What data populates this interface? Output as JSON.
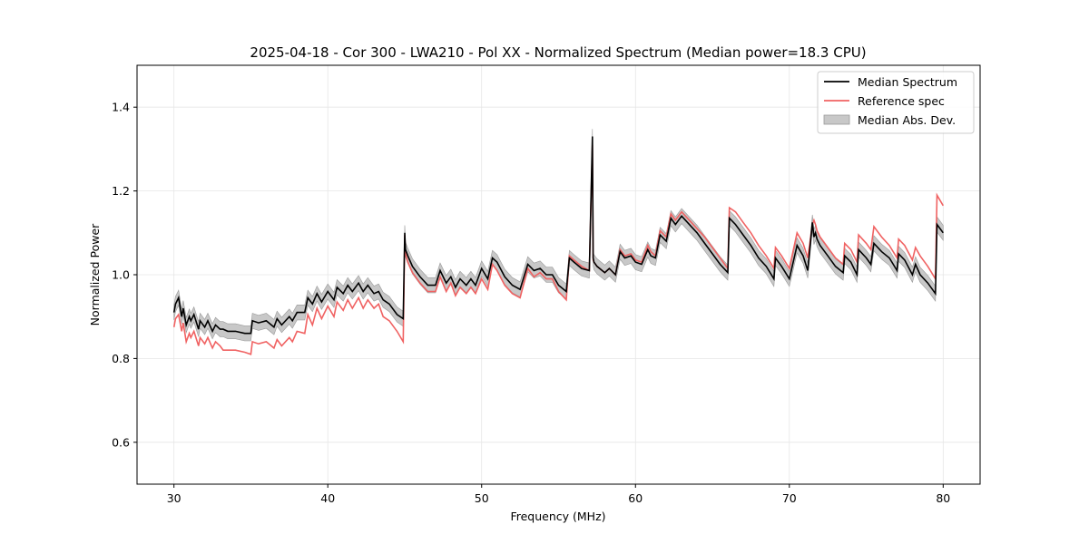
{
  "chart_data": {
    "type": "line",
    "title": "2025-04-18 - Cor 300 - LWA210 - Pol XX - Normalized Spectrum (Median power=18.3 CPU)",
    "xlabel": "Frequency (MHz)",
    "ylabel": "Normalized Power",
    "xlim": [
      27.6,
      82.4
    ],
    "ylim": [
      0.5,
      1.5
    ],
    "xticks": [
      30,
      40,
      50,
      60,
      70,
      80
    ],
    "yticks": [
      0.6,
      0.8,
      1.0,
      1.2,
      1.4
    ],
    "grid": true,
    "legend_position": "top-right",
    "colors": {
      "median": "#000000",
      "reference": "#f06262",
      "mad_band": "#b0b0b0"
    },
    "series": [
      {
        "name": "Median Spectrum",
        "style": "line",
        "x": [
          30.0,
          30.1,
          30.3,
          30.5,
          30.6,
          30.8,
          31.0,
          31.1,
          31.3,
          31.6,
          31.7,
          32.0,
          32.2,
          32.5,
          32.7,
          33.0,
          33.2,
          33.5,
          34.0,
          34.6,
          35.0,
          35.1,
          35.5,
          36.0,
          36.5,
          36.7,
          37.0,
          37.5,
          37.7,
          38.0,
          38.5,
          38.7,
          39.0,
          39.3,
          39.6,
          40.0,
          40.4,
          40.6,
          41.0,
          41.3,
          41.6,
          42.0,
          42.3,
          42.6,
          43.0,
          43.3,
          43.6,
          44.0,
          44.5,
          44.9,
          45.0,
          45.05,
          45.2,
          45.5,
          46.0,
          46.5,
          47.0,
          47.3,
          47.7,
          48.0,
          48.3,
          48.6,
          49.0,
          49.3,
          49.6,
          50.0,
          50.4,
          50.7,
          51.0,
          51.5,
          52.0,
          52.5,
          53.0,
          53.4,
          53.8,
          54.2,
          54.6,
          55.0,
          55.5,
          55.7,
          56.0,
          56.5,
          57.0,
          57.2,
          57.25,
          57.3,
          57.5,
          58.0,
          58.3,
          58.7,
          59.0,
          59.3,
          59.7,
          60.0,
          60.4,
          60.8,
          61.0,
          61.3,
          61.6,
          62.0,
          62.3,
          62.6,
          63.0,
          63.5,
          64.0,
          64.5,
          65.0,
          65.5,
          66.0,
          66.1,
          66.5,
          67.0,
          67.5,
          68.0,
          68.5,
          69.0,
          69.1,
          69.5,
          70.0,
          70.5,
          70.9,
          71.2,
          71.5,
          71.6,
          71.7,
          71.8,
          72.0,
          72.5,
          73.0,
          73.5,
          73.6,
          74.0,
          74.4,
          74.5,
          75.0,
          75.3,
          75.5,
          76.0,
          76.5,
          77.0,
          77.1,
          77.5,
          78.0,
          78.2,
          78.5,
          79.0,
          79.5,
          79.6,
          80.0
        ],
        "y": [
          0.91,
          0.93,
          0.945,
          0.9,
          0.92,
          0.88,
          0.9,
          0.89,
          0.905,
          0.87,
          0.89,
          0.875,
          0.89,
          0.865,
          0.88,
          0.87,
          0.87,
          0.865,
          0.865,
          0.86,
          0.86,
          0.89,
          0.885,
          0.89,
          0.875,
          0.895,
          0.88,
          0.9,
          0.89,
          0.91,
          0.91,
          0.945,
          0.93,
          0.955,
          0.935,
          0.96,
          0.94,
          0.97,
          0.955,
          0.975,
          0.96,
          0.98,
          0.96,
          0.975,
          0.955,
          0.96,
          0.94,
          0.93,
          0.905,
          0.895,
          1.1,
          1.06,
          1.045,
          1.02,
          0.995,
          0.975,
          0.975,
          1.01,
          0.98,
          0.995,
          0.97,
          0.99,
          0.975,
          0.99,
          0.975,
          1.015,
          0.99,
          1.04,
          1.03,
          0.995,
          0.975,
          0.965,
          1.025,
          1.01,
          1.015,
          1.0,
          1.0,
          0.975,
          0.96,
          1.04,
          1.03,
          1.015,
          1.01,
          1.33,
          1.04,
          1.03,
          1.02,
          1.005,
          1.015,
          1.0,
          1.055,
          1.04,
          1.045,
          1.03,
          1.025,
          1.06,
          1.045,
          1.04,
          1.095,
          1.08,
          1.135,
          1.12,
          1.14,
          1.12,
          1.1,
          1.075,
          1.05,
          1.025,
          1.005,
          1.135,
          1.12,
          1.095,
          1.07,
          1.04,
          1.02,
          0.99,
          1.04,
          1.02,
          0.99,
          1.07,
          1.045,
          1.01,
          1.125,
          1.09,
          1.1,
          1.085,
          1.07,
          1.045,
          1.02,
          1.005,
          1.045,
          1.03,
          1.0,
          1.06,
          1.04,
          1.025,
          1.075,
          1.055,
          1.04,
          1.01,
          1.05,
          1.035,
          1.0,
          1.025,
          1.0,
          0.98,
          0.955,
          1.12,
          1.1
        ]
      },
      {
        "name": "Reference spec",
        "style": "line",
        "x": [
          30.0,
          30.1,
          30.3,
          30.5,
          30.6,
          30.8,
          31.0,
          31.1,
          31.3,
          31.6,
          31.7,
          32.0,
          32.2,
          32.5,
          32.7,
          33.0,
          33.2,
          33.5,
          34.0,
          34.6,
          35.0,
          35.1,
          35.5,
          36.0,
          36.5,
          36.7,
          37.0,
          37.5,
          37.7,
          38.0,
          38.5,
          38.7,
          39.0,
          39.3,
          39.6,
          40.0,
          40.4,
          40.6,
          41.0,
          41.3,
          41.6,
          42.0,
          42.3,
          42.6,
          43.0,
          43.3,
          43.6,
          44.0,
          44.5,
          44.9,
          45.0,
          45.05,
          45.2,
          45.5,
          46.0,
          46.5,
          47.0,
          47.3,
          47.7,
          48.0,
          48.3,
          48.6,
          49.0,
          49.3,
          49.6,
          50.0,
          50.4,
          50.7,
          51.0,
          51.5,
          52.0,
          52.5,
          53.0,
          53.4,
          53.8,
          54.2,
          54.6,
          55.0,
          55.5,
          55.7,
          56.0,
          56.5,
          57.0,
          57.2,
          57.25,
          57.3,
          57.5,
          58.0,
          58.3,
          58.7,
          59.0,
          59.3,
          59.7,
          60.0,
          60.4,
          60.8,
          61.0,
          61.3,
          61.6,
          62.0,
          62.3,
          62.6,
          63.0,
          63.5,
          64.0,
          64.5,
          65.0,
          65.5,
          66.0,
          66.1,
          66.5,
          67.0,
          67.5,
          68.0,
          68.5,
          69.0,
          69.1,
          69.5,
          70.0,
          70.5,
          70.9,
          71.2,
          71.5,
          71.6,
          71.7,
          71.8,
          72.0,
          72.5,
          73.0,
          73.5,
          73.6,
          74.0,
          74.4,
          74.5,
          75.0,
          75.3,
          75.5,
          76.0,
          76.5,
          77.0,
          77.1,
          77.5,
          78.0,
          78.2,
          78.5,
          79.0,
          79.5,
          79.6,
          80.0
        ],
        "y": [
          0.875,
          0.895,
          0.905,
          0.865,
          0.885,
          0.84,
          0.86,
          0.85,
          0.865,
          0.83,
          0.85,
          0.835,
          0.85,
          0.825,
          0.84,
          0.83,
          0.82,
          0.82,
          0.82,
          0.815,
          0.81,
          0.84,
          0.835,
          0.84,
          0.825,
          0.845,
          0.83,
          0.85,
          0.84,
          0.865,
          0.86,
          0.905,
          0.88,
          0.92,
          0.895,
          0.925,
          0.9,
          0.935,
          0.915,
          0.94,
          0.92,
          0.945,
          0.92,
          0.94,
          0.92,
          0.93,
          0.9,
          0.89,
          0.865,
          0.84,
          1.095,
          1.05,
          1.03,
          1.005,
          0.98,
          0.96,
          0.96,
          0.995,
          0.96,
          0.98,
          0.95,
          0.97,
          0.955,
          0.97,
          0.955,
          0.99,
          0.965,
          1.025,
          1.01,
          0.975,
          0.955,
          0.945,
          1.015,
          0.995,
          1.005,
          0.99,
          0.99,
          0.96,
          0.94,
          1.045,
          1.035,
          1.02,
          1.01,
          1.31,
          1.035,
          1.03,
          1.02,
          1.005,
          1.015,
          1.0,
          1.06,
          1.045,
          1.05,
          1.035,
          1.03,
          1.07,
          1.055,
          1.045,
          1.105,
          1.09,
          1.145,
          1.13,
          1.15,
          1.13,
          1.11,
          1.09,
          1.065,
          1.04,
          1.015,
          1.16,
          1.15,
          1.125,
          1.1,
          1.07,
          1.045,
          1.015,
          1.065,
          1.045,
          1.015,
          1.1,
          1.075,
          1.04,
          1.12,
          1.13,
          1.12,
          1.105,
          1.09,
          1.065,
          1.04,
          1.025,
          1.075,
          1.06,
          1.03,
          1.095,
          1.075,
          1.06,
          1.115,
          1.09,
          1.07,
          1.04,
          1.085,
          1.07,
          1.035,
          1.065,
          1.045,
          1.02,
          0.99,
          1.19,
          1.165
        ]
      },
      {
        "name": "Median Abs. Dev.",
        "style": "band",
        "half_width": 0.018
      }
    ]
  }
}
